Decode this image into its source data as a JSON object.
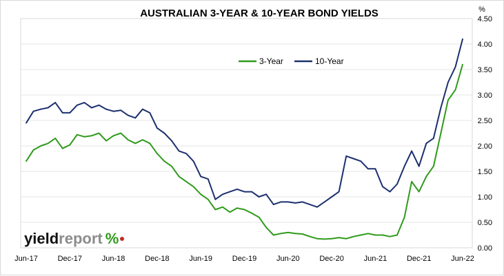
{
  "chart_data": {
    "type": "line",
    "title": "AUSTRALIAN 3-YEAR & 10-YEAR BOND YIELDS",
    "ylabel": "%",
    "xlabel": "",
    "ylim": [
      0,
      4.5
    ],
    "yticks": [
      "0.00",
      "0.50",
      "1.00",
      "1.50",
      "2.00",
      "2.50",
      "3.00",
      "3.50",
      "4.00",
      "4.50"
    ],
    "xticks": [
      "Jun-17",
      "Dec-17",
      "Jun-18",
      "Dec-18",
      "Jun-19",
      "Dec-19",
      "Jun-20",
      "Dec-20",
      "Jun-21",
      "Dec-21",
      "Jun-22"
    ],
    "x": [
      "Jun-17",
      "Jul-17",
      "Aug-17",
      "Sep-17",
      "Oct-17",
      "Nov-17",
      "Dec-17",
      "Jan-18",
      "Feb-18",
      "Mar-18",
      "Apr-18",
      "May-18",
      "Jun-18",
      "Jul-18",
      "Aug-18",
      "Sep-18",
      "Oct-18",
      "Nov-18",
      "Dec-18",
      "Jan-19",
      "Feb-19",
      "Mar-19",
      "Apr-19",
      "May-19",
      "Jun-19",
      "Jul-19",
      "Aug-19",
      "Sep-19",
      "Oct-19",
      "Nov-19",
      "Dec-19",
      "Jan-20",
      "Feb-20",
      "Mar-20",
      "Apr-20",
      "May-20",
      "Jun-20",
      "Jul-20",
      "Aug-20",
      "Sep-20",
      "Oct-20",
      "Nov-20",
      "Dec-20",
      "Jan-21",
      "Feb-21",
      "Mar-21",
      "Apr-21",
      "May-21",
      "Jun-21",
      "Jul-21",
      "Aug-21",
      "Sep-21",
      "Oct-21",
      "Nov-21",
      "Dec-21",
      "Jan-22",
      "Feb-22",
      "Mar-22",
      "Apr-22",
      "May-22",
      "Jun-22"
    ],
    "series": [
      {
        "name": "3-Year",
        "color": "#2e9a1a",
        "values": [
          1.7,
          1.92,
          2.0,
          2.05,
          2.15,
          1.95,
          2.02,
          2.22,
          2.18,
          2.2,
          2.25,
          2.1,
          2.2,
          2.25,
          2.12,
          2.05,
          2.12,
          2.05,
          1.85,
          1.7,
          1.6,
          1.4,
          1.3,
          1.2,
          1.05,
          0.95,
          0.75,
          0.8,
          0.7,
          0.78,
          0.75,
          0.68,
          0.6,
          0.4,
          0.25,
          0.28,
          0.3,
          0.28,
          0.27,
          0.22,
          0.18,
          0.17,
          0.18,
          0.2,
          0.18,
          0.22,
          0.25,
          0.28,
          0.25,
          0.25,
          0.22,
          0.25,
          0.6,
          1.3,
          1.1,
          1.4,
          1.6,
          2.25,
          2.9,
          3.1,
          3.6
        ]
      },
      {
        "name": "10-Year",
        "color": "#1b2f6e",
        "values": [
          2.45,
          2.68,
          2.72,
          2.75,
          2.85,
          2.65,
          2.65,
          2.8,
          2.85,
          2.75,
          2.8,
          2.72,
          2.68,
          2.7,
          2.6,
          2.55,
          2.72,
          2.65,
          2.35,
          2.25,
          2.1,
          1.9,
          1.85,
          1.7,
          1.4,
          1.35,
          0.95,
          1.05,
          1.1,
          1.15,
          1.1,
          1.1,
          1.0,
          1.05,
          0.85,
          0.9,
          0.9,
          0.88,
          0.9,
          0.85,
          0.8,
          0.9,
          1.0,
          1.1,
          1.8,
          1.75,
          1.7,
          1.55,
          1.55,
          1.2,
          1.1,
          1.25,
          1.6,
          1.9,
          1.6,
          2.05,
          2.15,
          2.75,
          3.25,
          3.55,
          4.1
        ]
      }
    ],
    "legend": [
      "3-Year",
      "10-Year"
    ],
    "legend_position": "top-center",
    "grid": true
  },
  "logo": {
    "word1": "yield",
    "word2": "report",
    "symbol": "%"
  }
}
